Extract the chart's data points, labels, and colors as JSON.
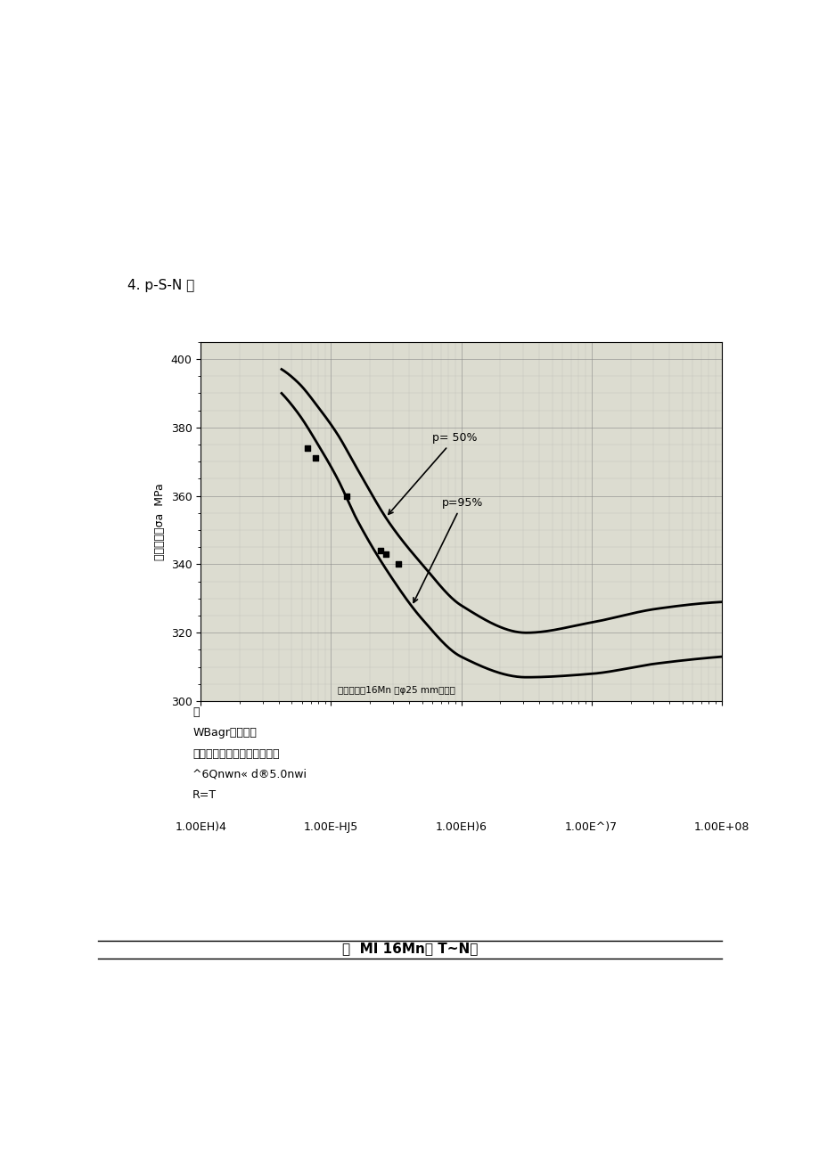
{
  "title_section": "4. p-S-N 雏",
  "ylabel": "应力幅度，σa  MPa",
  "xlabel_ticks": [
    "1.00EH)4",
    "1.00E-HJ5",
    "1.00EH)6",
    "1.00E^)7",
    "1.00E+08"
  ],
  "xlabel_vals": [
    10000.0,
    100000.0,
    1000000.0,
    10000000.0,
    100000000.0
  ],
  "ylim": [
    300,
    405
  ],
  "yticks": [
    300,
    320,
    340,
    360,
    380,
    400
  ],
  "p50_label": "p= 50%",
  "p95_label": "p=95%",
  "curve_p50_x_log": [
    4.62,
    4.75,
    4.9,
    5.05,
    5.2,
    5.45,
    5.7,
    6.0,
    6.5,
    7.0,
    7.5,
    8.0
  ],
  "curve_p50_y": [
    397,
    393,
    386,
    378,
    368,
    352,
    340,
    328,
    320,
    323,
    327,
    329
  ],
  "curve_p95_x_log": [
    4.62,
    4.75,
    4.9,
    5.05,
    5.2,
    5.45,
    5.7,
    6.0,
    6.5,
    7.0,
    7.5,
    8.0
  ],
  "curve_p95_y": [
    390,
    384,
    375,
    365,
    353,
    337,
    324,
    313,
    307,
    308,
    311,
    313
  ],
  "scatter_x_log": [
    4.82,
    4.88,
    5.12,
    5.38,
    5.42,
    5.52
  ],
  "scatter_y": [
    374,
    371,
    360,
    344,
    343,
    340
  ],
  "annot_inside": "试验材料：16Mn 钢φ25 mm热轧棒",
  "annot_lines": [
    "WBagr：，女皿",
    "试样形状：漏斗形光滑试样，",
    "^6Qnwn« d®5.0nwi",
    "R=T"
  ],
  "figure_caption": "图  MI 16Mn钢 T~N岻",
  "plot_bg": "#dcdcd0"
}
